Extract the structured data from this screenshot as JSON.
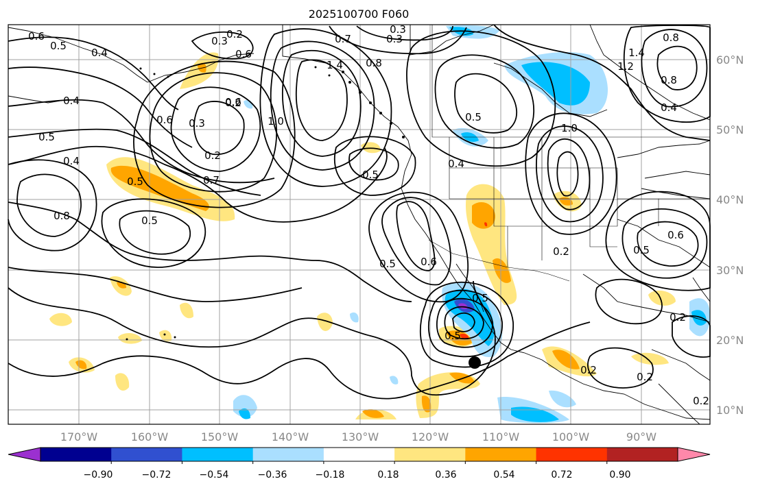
{
  "title": "2025100700 F060",
  "lon_labels": [
    "170°W",
    "160°W",
    "150°W",
    "140°W",
    "130°W",
    "120°W",
    "110°W",
    "100°W",
    "90°W"
  ],
  "lat_labels": [
    "60°N",
    "50°N",
    "40°N",
    "30°N",
    "20°N",
    "10°N"
  ],
  "colorbar": {
    "tick_labels": [
      "−0.90",
      "−0.72",
      "−0.54",
      "−0.36",
      "−0.18",
      "0.18",
      "0.36",
      "0.54",
      "0.72",
      "0.90"
    ],
    "colors": [
      "#9b30d0",
      "#000090",
      "#3050d0",
      "#00bfff",
      "#aadfff",
      "#ffffff",
      "#ffe680",
      "#ffa500",
      "#ff3300",
      "#b22222",
      "#ff88aa"
    ]
  },
  "contour_labels": [
    "0.6",
    "0.5",
    "0.4",
    "0.3",
    "0.2",
    "0.3",
    "0.6",
    "0.7",
    "0.3",
    "1.4",
    "0.8",
    "0.4",
    "0.3",
    "0.2",
    "1.0",
    "0.6",
    "0.5",
    "0.2",
    "0.7",
    "0.5",
    "0.4",
    "0.5",
    "0.4",
    "0.5",
    "0.6",
    "0.8",
    "0.5",
    "0.5",
    "0.6",
    "1.0",
    "1.2",
    "1.4",
    "0.8",
    "0.4",
    "0.5",
    "0.6",
    "0.2",
    "0.2",
    "0.2",
    "0.8",
    "0.5",
    "0.5",
    "0.2",
    "0.2"
  ],
  "colors": {
    "contour": "#000000",
    "grid": "#a0a0a0",
    "coast": "#000000"
  }
}
